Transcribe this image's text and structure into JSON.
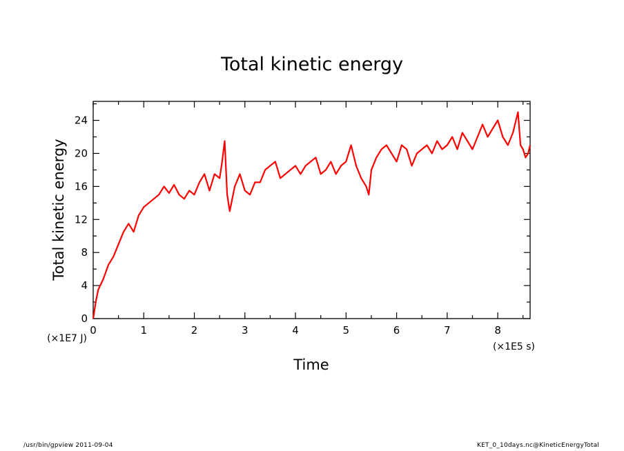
{
  "chart_data": {
    "type": "line",
    "title": "Total kinetic energy",
    "xlabel": "Time",
    "ylabel": "Total kinetic energy",
    "x_unit": "(×1E5 s)",
    "y_unit": "(×1E7 J)",
    "xlim": [
      0,
      8.64
    ],
    "ylim": [
      0,
      26.3
    ],
    "x_ticks": [
      "0",
      "1",
      "2",
      "3",
      "4",
      "5",
      "6",
      "7",
      "8"
    ],
    "y_ticks": [
      "0",
      "4",
      "8",
      "12",
      "16",
      "20",
      "24"
    ],
    "line_color": "#ff0000",
    "grid": false,
    "series": [
      {
        "x": [
          0,
          0.05,
          0.1,
          0.2,
          0.3,
          0.4,
          0.5,
          0.6,
          0.7,
          0.8,
          0.9,
          1.0,
          1.1,
          1.2,
          1.3,
          1.4,
          1.5,
          1.6,
          1.7,
          1.8,
          1.9,
          2.0,
          2.1,
          2.2,
          2.3,
          2.4,
          2.5,
          2.55,
          2.6,
          2.65,
          2.7,
          2.8,
          2.9,
          3.0,
          3.1,
          3.2,
          3.3,
          3.4,
          3.5,
          3.6,
          3.7,
          3.8,
          3.9,
          4.0,
          4.1,
          4.2,
          4.3,
          4.4,
          4.5,
          4.6,
          4.7,
          4.8,
          4.9,
          5.0,
          5.1,
          5.2,
          5.3,
          5.4,
          5.45,
          5.5,
          5.6,
          5.7,
          5.8,
          5.9,
          6.0,
          6.1,
          6.2,
          6.3,
          6.4,
          6.5,
          6.6,
          6.7,
          6.8,
          6.9,
          7.0,
          7.1,
          7.2,
          7.3,
          7.4,
          7.5,
          7.6,
          7.7,
          7.8,
          7.9,
          8.0,
          8.1,
          8.2,
          8.3,
          8.4,
          8.45,
          8.5,
          8.55,
          8.6,
          8.64
        ],
        "y": [
          0,
          2,
          3.5,
          4.8,
          6.5,
          7.5,
          9,
          10.5,
          11.5,
          10.5,
          12.5,
          13.5,
          14,
          14.5,
          15,
          16,
          15.2,
          16.2,
          15,
          14.5,
          15.5,
          15,
          16.5,
          17.5,
          15.5,
          17.5,
          17,
          19,
          21.5,
          15,
          13,
          16,
          17.5,
          15.5,
          15,
          16.5,
          16.5,
          18,
          18.5,
          19,
          17,
          17.5,
          18,
          18.5,
          17.5,
          18.5,
          19,
          19.5,
          17.5,
          18,
          19,
          17.5,
          18.5,
          19,
          21,
          18.5,
          17,
          16,
          15,
          18,
          19.5,
          20.5,
          21,
          20,
          19,
          21,
          20.5,
          18.5,
          20,
          20.5,
          21,
          20,
          21.5,
          20.5,
          21,
          22,
          20.5,
          22.5,
          21.5,
          20.5,
          22,
          23.5,
          22,
          23,
          24,
          22,
          21,
          22.5,
          25,
          21,
          20.5,
          19.5,
          20,
          21
        ]
      }
    ]
  },
  "footer": {
    "left": "/usr/bin/gpview   2011-09-04",
    "right": "KET_0_10days.nc@KineticEnergyTotal"
  }
}
